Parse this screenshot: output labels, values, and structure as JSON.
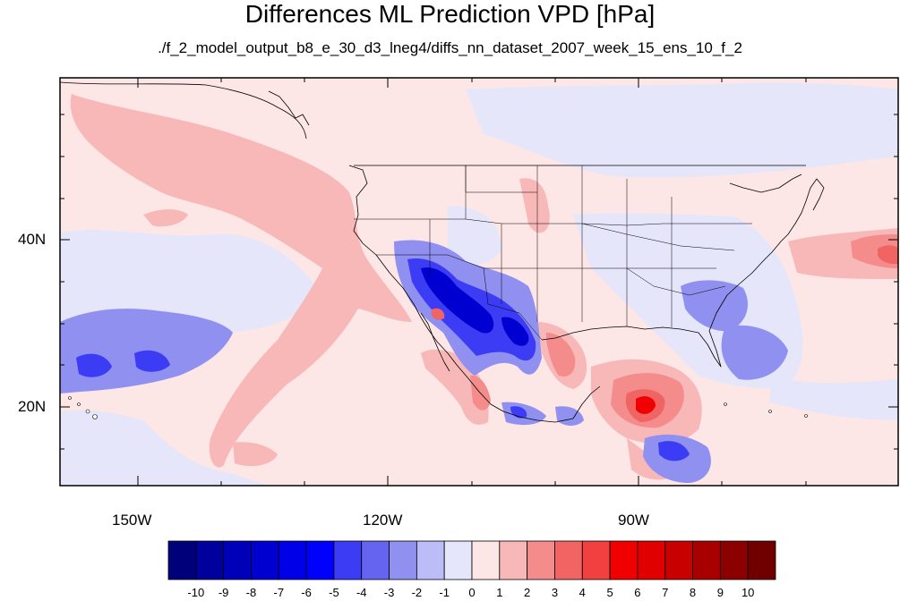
{
  "title": "Differences ML Prediction VPD [hPa]",
  "subtitle": "./f_2_model_output_b8_e_30_d3_lneg4/diffs_nn_dataset_2007_week_15_ens_10_f_2",
  "map": {
    "lon_labels": [
      "150W",
      "120W",
      "90W"
    ],
    "lat_labels": [
      "40N",
      "20N"
    ],
    "extent": {
      "lon": [
        -159.4,
        -60.8
      ],
      "lat": [
        11.0,
        60.0
      ]
    }
  },
  "colorbar": {
    "labels": [
      "-10",
      "-9",
      "-8",
      "-7",
      "-6",
      "-5",
      "-4",
      "-3",
      "-2",
      "-1",
      "0",
      "1",
      "2",
      "3",
      "4",
      "5",
      "6",
      "7",
      "8",
      "9",
      "10"
    ],
    "colors": [
      "#00007a",
      "#00009c",
      "#0000b8",
      "#0000d0",
      "#0000e8",
      "#0000ff",
      "#3c3cf5",
      "#6464f0",
      "#9090f0",
      "#bcbcf8",
      "#e6e6fa",
      "#fce6e6",
      "#f8b8b8",
      "#f48c8c",
      "#f06464",
      "#f04040",
      "#f00000",
      "#e00000",
      "#c80000",
      "#a80000",
      "#8c0000",
      "#700000"
    ]
  }
}
